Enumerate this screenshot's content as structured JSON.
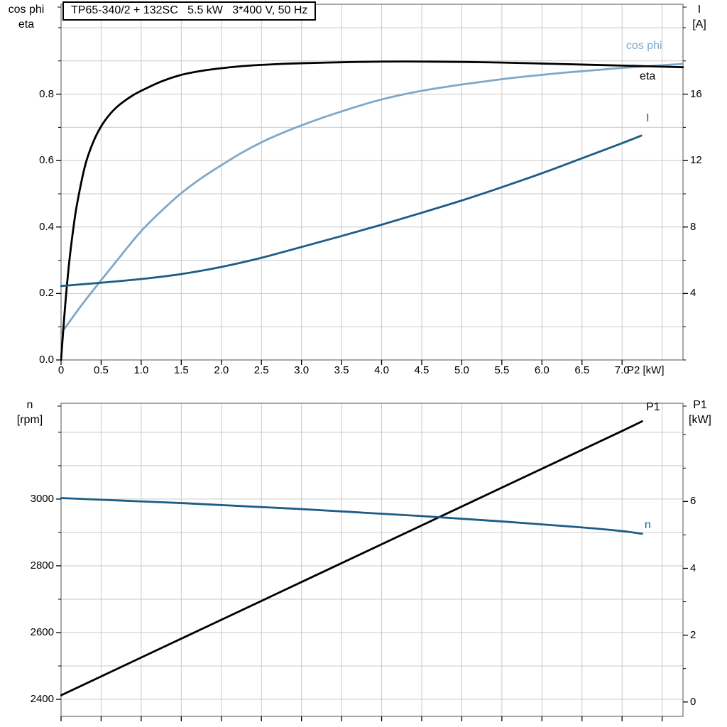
{
  "chart_data": [
    {
      "type": "line",
      "name": "motor-performance",
      "title": "TP65-340/2 + 132SC   5.5 kW   3*400 V, 50 Hz",
      "x_axis": {
        "label": "P2 [kW]",
        "range": [
          0,
          7.76
        ],
        "grid": {
          "start": 0,
          "step": 0.5,
          "end": 7.5
        },
        "tick_values": [
          0,
          0.5,
          1,
          1.5,
          2,
          2.5,
          3,
          3.5,
          4,
          4.5,
          5,
          5.5,
          6,
          6.5,
          7
        ],
        "tick_labels": [
          "0",
          "0.5",
          "1.0",
          "1.5",
          "2.0",
          "2.5",
          "3.0",
          "3.5",
          "4.0",
          "4.5",
          "5.0",
          "5.5",
          "6.0",
          "6.5",
          "7.0"
        ]
      },
      "left_axis": {
        "title_lines": [
          "cos phi",
          "eta"
        ],
        "range": [
          0,
          1.0705
        ],
        "grid": {
          "start": 0,
          "step": 0.1,
          "end": 1.0
        },
        "minor": {
          "start": 0,
          "step": 0.1,
          "end": 1.0
        },
        "tick_values": [
          0,
          0.2,
          0.4,
          0.6,
          0.8
        ],
        "tick_labels": [
          "0.0",
          "0.2",
          "0.4",
          "0.6",
          "0.8"
        ]
      },
      "right_axis": {
        "title_lines": [
          "I",
          "[A]"
        ],
        "range": [
          0,
          21.41
        ],
        "minor": {
          "start": 0,
          "step": 2,
          "end": 20
        },
        "tick_values": [
          4,
          8,
          12,
          16
        ],
        "tick_labels": [
          "4",
          "8",
          "12",
          "16"
        ]
      },
      "series": [
        {
          "name": "cos phi",
          "axis": "left",
          "color": "#7fa8c8",
          "width": 2.8,
          "label_pos": [
            7.05,
            0.945
          ],
          "points": [
            [
              0,
              0.08
            ],
            [
              0.25,
              0.163
            ],
            [
              0.5,
              0.24
            ],
            [
              0.75,
              0.315
            ],
            [
              1,
              0.388
            ],
            [
              1.25,
              0.448
            ],
            [
              1.5,
              0.502
            ],
            [
              1.75,
              0.547
            ],
            [
              2,
              0.586
            ],
            [
              2.25,
              0.623
            ],
            [
              2.5,
              0.655
            ],
            [
              2.75,
              0.682
            ],
            [
              3,
              0.706
            ],
            [
              3.25,
              0.728
            ],
            [
              3.5,
              0.748
            ],
            [
              3.75,
              0.767
            ],
            [
              4,
              0.784
            ],
            [
              4.25,
              0.798
            ],
            [
              4.5,
              0.81
            ],
            [
              4.75,
              0.82
            ],
            [
              5,
              0.829
            ],
            [
              5.25,
              0.837
            ],
            [
              5.5,
              0.845
            ],
            [
              5.75,
              0.852
            ],
            [
              6,
              0.858
            ],
            [
              6.25,
              0.864
            ],
            [
              6.5,
              0.869
            ],
            [
              6.75,
              0.874
            ],
            [
              7,
              0.879
            ],
            [
              7.25,
              0.883
            ],
            [
              7.5,
              0.887
            ],
            [
              7.76,
              0.891
            ]
          ]
        },
        {
          "name": "eta",
          "axis": "left",
          "color": "#000000",
          "width": 2.8,
          "label_pos": [
            7.22,
            0.852
          ],
          "points": [
            [
              0,
              0
            ],
            [
              0.05,
              0.16
            ],
            [
              0.1,
              0.29
            ],
            [
              0.15,
              0.39
            ],
            [
              0.2,
              0.47
            ],
            [
              0.3,
              0.585
            ],
            [
              0.4,
              0.655
            ],
            [
              0.5,
              0.703
            ],
            [
              0.6,
              0.737
            ],
            [
              0.7,
              0.762
            ],
            [
              0.8,
              0.781
            ],
            [
              0.9,
              0.797
            ],
            [
              1,
              0.81
            ],
            [
              1.25,
              0.838
            ],
            [
              1.5,
              0.858
            ],
            [
              1.75,
              0.87
            ],
            [
              2,
              0.878
            ],
            [
              2.25,
              0.884
            ],
            [
              2.5,
              0.888
            ],
            [
              2.75,
              0.891
            ],
            [
              3,
              0.893
            ],
            [
              3.5,
              0.896
            ],
            [
              4,
              0.898
            ],
            [
              4.5,
              0.898
            ],
            [
              5,
              0.897
            ],
            [
              5.5,
              0.895
            ],
            [
              6,
              0.892
            ],
            [
              6.5,
              0.889
            ],
            [
              7,
              0.886
            ],
            [
              7.3,
              0.884
            ],
            [
              7.76,
              0.881
            ]
          ]
        },
        {
          "name": "I",
          "axis": "right",
          "color": "#1d5c87",
          "width": 2.8,
          "label_pos": [
            7.3,
            14.55
          ],
          "points": [
            [
              0,
              4.45
            ],
            [
              0.5,
              4.65
            ],
            [
              1,
              4.87
            ],
            [
              1.5,
              5.17
            ],
            [
              2,
              5.6
            ],
            [
              2.5,
              6.15
            ],
            [
              3,
              6.8
            ],
            [
              3.5,
              7.46
            ],
            [
              4,
              8.14
            ],
            [
              4.5,
              8.86
            ],
            [
              5,
              9.6
            ],
            [
              5.5,
              10.4
            ],
            [
              6,
              11.24
            ],
            [
              6.5,
              12.14
            ],
            [
              7,
              13.05
            ],
            [
              7.24,
              13.5
            ]
          ]
        }
      ]
    },
    {
      "type": "line",
      "name": "speed-and-input-power",
      "title": "",
      "x_axis": {
        "label": "",
        "range": [
          0,
          7.76
        ],
        "grid": {
          "start": 0,
          "step": 0.5,
          "end": 7.5
        },
        "tick_values": [
          0,
          0.5,
          1,
          1.5,
          2,
          2.5,
          3,
          3.5,
          4,
          4.5,
          5,
          5.5,
          6,
          6.5,
          7,
          7.5
        ],
        "tick_labels": []
      },
      "left_axis": {
        "title_lines": [
          "n",
          "[rpm]"
        ],
        "range": [
          2349,
          3287
        ],
        "grid": {
          "start": 2400,
          "step": 100,
          "end": 3200
        },
        "minor": {
          "start": 2400,
          "step": 100,
          "end": 3200
        },
        "tick_values": [
          2400,
          2600,
          2800,
          3000
        ],
        "tick_labels": [
          "2400",
          "2600",
          "2800",
          "3000"
        ]
      },
      "right_axis": {
        "title_lines": [
          "P1",
          "[kW]"
        ],
        "range": [
          -0.43,
          8.94
        ],
        "minor": {
          "start": 0,
          "step": 1,
          "end": 8
        },
        "tick_values": [
          0,
          2,
          4,
          6
        ],
        "tick_labels": [
          "0",
          "2",
          "4",
          "6"
        ]
      },
      "series": [
        {
          "name": "P1",
          "axis": "right",
          "color": "#000000",
          "width": 2.8,
          "label_pos": [
            7.3,
            8.82
          ],
          "points": [
            [
              0,
              0.2
            ],
            [
              1,
              1.33
            ],
            [
              2,
              2.46
            ],
            [
              3,
              3.59
            ],
            [
              4,
              4.72
            ],
            [
              5,
              5.85
            ],
            [
              6,
              6.98
            ],
            [
              7,
              8.11
            ],
            [
              7.25,
              8.4
            ]
          ]
        },
        {
          "name": "n",
          "axis": "left",
          "color": "#1d5c87",
          "width": 2.8,
          "label_pos": [
            7.28,
            2922
          ],
          "points": [
            [
              0,
              3003
            ],
            [
              0.5,
              2998
            ],
            [
              1,
              2993
            ],
            [
              1.5,
              2988
            ],
            [
              2,
              2982
            ],
            [
              2.5,
              2976
            ],
            [
              3,
              2970
            ],
            [
              3.5,
              2963
            ],
            [
              4,
              2956
            ],
            [
              4.5,
              2949
            ],
            [
              5,
              2941
            ],
            [
              5.5,
              2933
            ],
            [
              6,
              2924
            ],
            [
              6.5,
              2915
            ],
            [
              7,
              2904
            ],
            [
              7.25,
              2896
            ]
          ]
        }
      ]
    }
  ],
  "styles": {
    "grid_color": "#c9c9c9",
    "border_color": "#6e6e6e",
    "tick_color": "#000000",
    "light_blue": "#7fa8c8",
    "dark_blue": "#1d5c87",
    "black": "#000000"
  }
}
